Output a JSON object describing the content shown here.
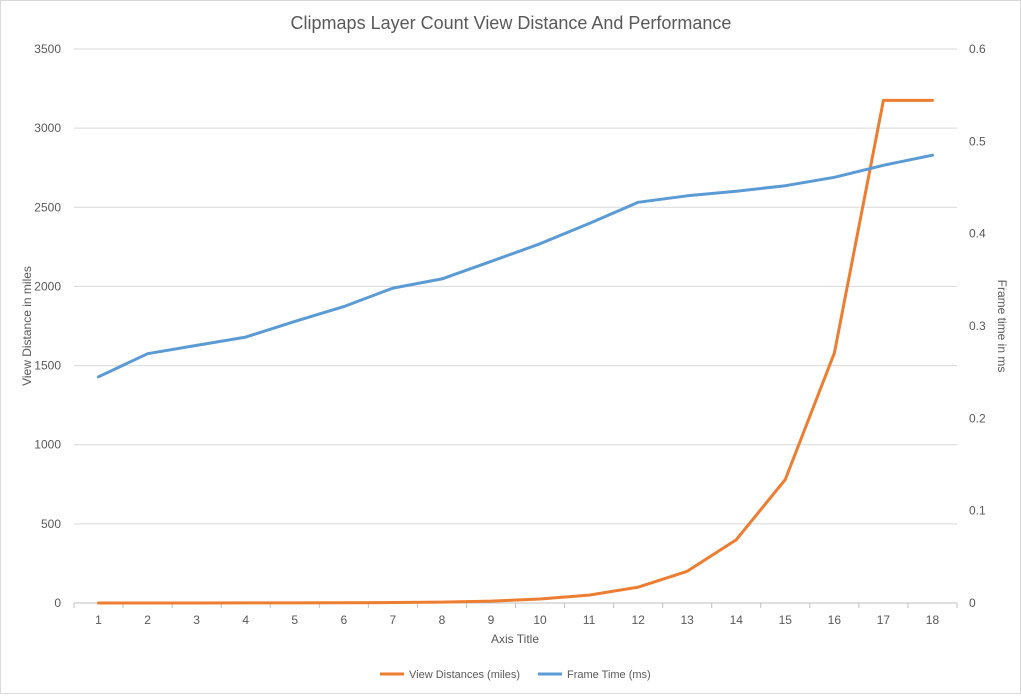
{
  "chart_data": {
    "type": "line",
    "title": "Clipmaps Layer Count View Distance And Performance",
    "xlabel": "Axis Title",
    "ylabel": "View Distance in miles",
    "y2label": "Frame time in ms",
    "categories": [
      "1",
      "2",
      "3",
      "4",
      "5",
      "6",
      "7",
      "8",
      "9",
      "10",
      "11",
      "12",
      "13",
      "14",
      "15",
      "16",
      "17",
      "18"
    ],
    "ylim": [
      0,
      3500
    ],
    "yticks": [
      0,
      500,
      1000,
      1500,
      2000,
      2500,
      3000,
      3500
    ],
    "y2lim": [
      0,
      0.6
    ],
    "y2ticks": [
      "0",
      "0.1",
      "0.2",
      "0.3",
      "0.4",
      "0.5",
      "0.6"
    ],
    "grid": true,
    "legend_position": "bottom",
    "series": [
      {
        "name": "View Distances (miles)",
        "axis": "left",
        "color": "#ED7D31",
        "values": [
          0.05,
          0.1,
          0.2,
          0.4,
          0.8,
          1.5,
          3,
          6,
          12,
          25,
          50,
          100,
          200,
          400,
          780,
          1580,
          3175,
          3175
        ]
      },
      {
        "name": "Frame Time (ms)",
        "axis": "right",
        "color": "#5B9BD5",
        "values": [
          0.245,
          0.27,
          0.279,
          0.288,
          0.305,
          0.321,
          0.341,
          0.351,
          0.37,
          0.389,
          0.411,
          0.434,
          0.441,
          0.446,
          0.452,
          0.461,
          0.474,
          0.485
        ]
      }
    ]
  }
}
